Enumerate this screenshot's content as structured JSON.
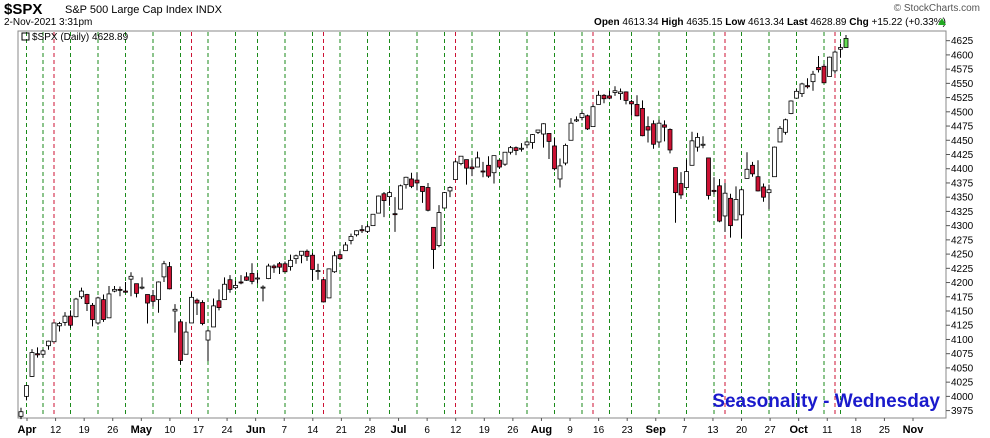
{
  "header": {
    "symbol": "$SPX",
    "name": "S&P 500 Large Cap Index",
    "exchange": "INDX",
    "date": "2-Nov-2021 3:31pm",
    "copyright": "© StockCharts.com",
    "open_label": "Open",
    "open": "4613.34",
    "high_label": "High",
    "high": "4635.15",
    "low_label": "Low",
    "low": "4613.34",
    "last_label": "Last",
    "last": "4628.89",
    "chg_label": "Chg",
    "chg": "+15.22 (+0.33%)",
    "up_color": "#22aa22"
  },
  "chart_data": {
    "type": "candlestick",
    "legend": "$SPX (Daily) 4628.89",
    "annotation": "Seasonality - Wednesday",
    "ylim": [
      3962,
      4642
    ],
    "yticks": [
      3975,
      4000,
      4025,
      4050,
      4075,
      4100,
      4125,
      4150,
      4175,
      4200,
      4225,
      4250,
      4275,
      4300,
      4325,
      4350,
      4375,
      4400,
      4425,
      4450,
      4475,
      4500,
      4525,
      4550,
      4575,
      4600,
      4625
    ],
    "x_tick_labels": [
      "Apr",
      "12",
      "19",
      "26",
      "May",
      "10",
      "17",
      "24",
      "Jun",
      "7",
      "14",
      "21",
      "28",
      "Jul",
      "6",
      "12",
      "19",
      "26",
      "Aug",
      "9",
      "16",
      "23",
      "Sep",
      "7",
      "13",
      "20",
      "27",
      "Oct",
      "11",
      "18",
      "25",
      "Nov"
    ],
    "bold_x_labels": [
      "Apr",
      "May",
      "Jun",
      "Jul",
      "Aug",
      "Sep",
      "Oct",
      "Nov"
    ],
    "colors": {
      "up": "#ffffff",
      "down": "#cc1133",
      "outline": "#000000",
      "green_line": "#1a8a1a",
      "red_line": "#cc1133",
      "last_candle": "#66dd55",
      "annotation": "#1a1acc"
    },
    "green_line_dates": [
      "Apr 1",
      "Apr 7",
      "Apr 14",
      "Apr 21",
      "Apr 28",
      "May 5",
      "May 12",
      "May 19",
      "May 26",
      "Jun 2",
      "Jun 9",
      "Jun 16",
      "Jun 23",
      "Jun 30",
      "Jul 7",
      "Jul 14",
      "Jul 21",
      "Jul 28",
      "Aug 4",
      "Aug 11",
      "Aug 18",
      "Aug 25",
      "Sep 1",
      "Sep 8",
      "Sep 15",
      "Sep 22",
      "Sep 29",
      "Oct 6",
      "Oct 13",
      "Oct 20",
      "Oct 27",
      "Nov 1"
    ],
    "red_line_dates": [
      "Apr 9",
      "May 14",
      "Jun 18",
      "Jul 23",
      "Aug 27",
      "Oct 1",
      "Oct 29"
    ],
    "candles": [
      {
        "d": "Mar 31",
        "o": 3965,
        "h": 3980,
        "l": 3960,
        "c": 3973
      },
      {
        "d": "Apr 1",
        "o": 4000,
        "h": 4020,
        "l": 3993,
        "c": 4019
      },
      {
        "d": "Apr 5",
        "o": 4035,
        "h": 4083,
        "l": 4034,
        "c": 4077
      },
      {
        "d": "Apr 6",
        "o": 4075,
        "h": 4086,
        "l": 4068,
        "c": 4073
      },
      {
        "d": "Apr 7",
        "o": 4074,
        "h": 4083,
        "l": 4068,
        "c": 4080
      },
      {
        "d": "Apr 8",
        "o": 4089,
        "h": 4098,
        "l": 4082,
        "c": 4097
      },
      {
        "d": "Apr 9",
        "o": 4096,
        "h": 4129,
        "l": 4095,
        "c": 4129
      },
      {
        "d": "Apr 12",
        "o": 4124,
        "h": 4131,
        "l": 4114,
        "c": 4128
      },
      {
        "d": "Apr 13",
        "o": 4130,
        "h": 4148,
        "l": 4124,
        "c": 4141
      },
      {
        "d": "Apr 14",
        "o": 4141,
        "h": 4151,
        "l": 4120,
        "c": 4125
      },
      {
        "d": "Apr 15",
        "o": 4140,
        "h": 4173,
        "l": 4139,
        "c": 4171
      },
      {
        "d": "Apr 16",
        "o": 4175,
        "h": 4191,
        "l": 4171,
        "c": 4185
      },
      {
        "d": "Apr 19",
        "o": 4179,
        "h": 4180,
        "l": 4150,
        "c": 4163
      },
      {
        "d": "Apr 20",
        "o": 4160,
        "h": 4164,
        "l": 4123,
        "c": 4135
      },
      {
        "d": "Apr 21",
        "o": 4129,
        "h": 4175,
        "l": 4126,
        "c": 4173
      },
      {
        "d": "Apr 22",
        "o": 4170,
        "h": 4179,
        "l": 4131,
        "c": 4135
      },
      {
        "d": "Apr 23",
        "o": 4138,
        "h": 4194,
        "l": 4138,
        "c": 4180
      },
      {
        "d": "Apr 26",
        "o": 4185,
        "h": 4194,
        "l": 4183,
        "c": 4188
      },
      {
        "d": "Apr 27",
        "o": 4188,
        "h": 4193,
        "l": 4176,
        "c": 4187
      },
      {
        "d": "Apr 28",
        "o": 4185,
        "h": 4201,
        "l": 4182,
        "c": 4183
      },
      {
        "d": "Apr 29",
        "o": 4206,
        "h": 4218,
        "l": 4176,
        "c": 4211
      },
      {
        "d": "Apr 30",
        "o": 4198,
        "h": 4198,
        "l": 4174,
        "c": 4181
      },
      {
        "d": "May 3",
        "o": 4192,
        "h": 4209,
        "l": 4188,
        "c": 4192
      },
      {
        "d": "May 4",
        "o": 4179,
        "h": 4179,
        "l": 4128,
        "c": 4164
      },
      {
        "d": "May 5",
        "o": 4177,
        "h": 4187,
        "l": 4158,
        "c": 4167
      },
      {
        "d": "May 6",
        "o": 4170,
        "h": 4202,
        "l": 4147,
        "c": 4201
      },
      {
        "d": "May 7",
        "o": 4210,
        "h": 4238,
        "l": 4201,
        "c": 4233
      },
      {
        "d": "May 10",
        "o": 4228,
        "h": 4236,
        "l": 4188,
        "c": 4189
      },
      {
        "d": "May 11",
        "o": 4150,
        "h": 4162,
        "l": 4112,
        "c": 4153
      },
      {
        "d": "May 12",
        "o": 4131,
        "h": 4135,
        "l": 4056,
        "c": 4063
      },
      {
        "d": "May 13",
        "o": 4074,
        "h": 4131,
        "l": 4074,
        "c": 4113
      },
      {
        "d": "May 14",
        "o": 4129,
        "h": 4183,
        "l": 4129,
        "c": 4174
      },
      {
        "d": "May 17",
        "o": 4169,
        "h": 4172,
        "l": 4143,
        "c": 4164
      },
      {
        "d": "May 18",
        "o": 4165,
        "h": 4169,
        "l": 4125,
        "c": 4128
      },
      {
        "d": "May 19",
        "o": 4099,
        "h": 4117,
        "l": 4062,
        "c": 4115
      },
      {
        "d": "May 20",
        "o": 4122,
        "h": 4172,
        "l": 4122,
        "c": 4159
      },
      {
        "d": "May 21",
        "o": 4168,
        "h": 4188,
        "l": 4151,
        "c": 4156
      },
      {
        "d": "May 24",
        "o": 4170,
        "h": 4209,
        "l": 4170,
        "c": 4197
      },
      {
        "d": "May 25",
        "o": 4205,
        "h": 4213,
        "l": 4182,
        "c": 4188
      },
      {
        "d": "May 26",
        "o": 4191,
        "h": 4203,
        "l": 4188,
        "c": 4195
      },
      {
        "d": "May 27",
        "o": 4201,
        "h": 4213,
        "l": 4197,
        "c": 4200
      },
      {
        "d": "May 28",
        "o": 4210,
        "h": 4218,
        "l": 4203,
        "c": 4204
      },
      {
        "d": "Jun 1",
        "o": 4216,
        "h": 4234,
        "l": 4197,
        "c": 4202
      },
      {
        "d": "Jun 2",
        "o": 4207,
        "h": 4217,
        "l": 4198,
        "c": 4208
      },
      {
        "d": "Jun 3",
        "o": 4191,
        "h": 4195,
        "l": 4167,
        "c": 4192
      },
      {
        "d": "Jun 4",
        "o": 4207,
        "h": 4233,
        "l": 4206,
        "c": 4229
      },
      {
        "d": "Jun 7",
        "o": 4229,
        "h": 4232,
        "l": 4217,
        "c": 4226
      },
      {
        "d": "Jun 8",
        "o": 4233,
        "h": 4236,
        "l": 4215,
        "c": 4227
      },
      {
        "d": "Jun 9",
        "o": 4233,
        "h": 4237,
        "l": 4218,
        "c": 4219
      },
      {
        "d": "Jun 10",
        "o": 4228,
        "h": 4249,
        "l": 4221,
        "c": 4239
      },
      {
        "d": "Jun 11",
        "o": 4242,
        "h": 4249,
        "l": 4233,
        "c": 4247
      },
      {
        "d": "Jun 14",
        "o": 4248,
        "h": 4255,
        "l": 4234,
        "c": 4255
      },
      {
        "d": "Jun 15",
        "o": 4255,
        "h": 4258,
        "l": 4238,
        "c": 4246
      },
      {
        "d": "Jun 16",
        "o": 4248,
        "h": 4252,
        "l": 4203,
        "c": 4223
      },
      {
        "d": "Jun 17",
        "o": 4220,
        "h": 4233,
        "l": 4205,
        "c": 4221
      },
      {
        "d": "Jun 18",
        "o": 4205,
        "h": 4206,
        "l": 4165,
        "c": 4166
      },
      {
        "d": "Jun 21",
        "o": 4173,
        "h": 4225,
        "l": 4173,
        "c": 4224
      },
      {
        "d": "Jun 22",
        "o": 4219,
        "h": 4255,
        "l": 4217,
        "c": 4247
      },
      {
        "d": "Jun 23",
        "o": 4249,
        "h": 4256,
        "l": 4241,
        "c": 4242
      },
      {
        "d": "Jun 24",
        "o": 4256,
        "h": 4271,
        "l": 4256,
        "c": 4266
      },
      {
        "d": "Jun 25",
        "o": 4274,
        "h": 4286,
        "l": 4267,
        "c": 4281
      },
      {
        "d": "Jun 28",
        "o": 4284,
        "h": 4292,
        "l": 4281,
        "c": 4291
      },
      {
        "d": "Jun 29",
        "o": 4293,
        "h": 4301,
        "l": 4287,
        "c": 4291
      },
      {
        "d": "Jun 30",
        "o": 4290,
        "h": 4302,
        "l": 4287,
        "c": 4298
      },
      {
        "d": "Jul 1",
        "o": 4300,
        "h": 4320,
        "l": 4300,
        "c": 4320
      },
      {
        "d": "Jul 2",
        "o": 4322,
        "h": 4353,
        "l": 4322,
        "c": 4352
      },
      {
        "d": "Jul 6",
        "o": 4356,
        "h": 4359,
        "l": 4315,
        "c": 4344
      },
      {
        "d": "Jul 7",
        "o": 4351,
        "h": 4362,
        "l": 4335,
        "c": 4358
      },
      {
        "d": "Jul 8",
        "o": 4321,
        "h": 4350,
        "l": 4289,
        "c": 4320
      },
      {
        "d": "Jul 9",
        "o": 4329,
        "h": 4372,
        "l": 4329,
        "c": 4370
      },
      {
        "d": "Jul 12",
        "o": 4372,
        "h": 4386,
        "l": 4365,
        "c": 4385
      },
      {
        "d": "Jul 13",
        "o": 4382,
        "h": 4393,
        "l": 4366,
        "c": 4369
      },
      {
        "d": "Jul 14",
        "o": 4380,
        "h": 4393,
        "l": 4362,
        "c": 4375
      },
      {
        "d": "Jul 15",
        "o": 4369,
        "h": 4369,
        "l": 4340,
        "c": 4360
      },
      {
        "d": "Jul 16",
        "o": 4367,
        "h": 4375,
        "l": 4325,
        "c": 4327
      },
      {
        "d": "Jul 19",
        "o": 4297,
        "h": 4297,
        "l": 4224,
        "c": 4258
      },
      {
        "d": "Jul 20",
        "o": 4265,
        "h": 4336,
        "l": 4262,
        "c": 4323
      },
      {
        "d": "Jul 21",
        "o": 4331,
        "h": 4359,
        "l": 4331,
        "c": 4358
      },
      {
        "d": "Jul 22",
        "o": 4361,
        "h": 4369,
        "l": 4350,
        "c": 4367
      },
      {
        "d": "Jul 23",
        "o": 4381,
        "h": 4415,
        "l": 4381,
        "c": 4412
      },
      {
        "d": "Jul 26",
        "o": 4409,
        "h": 4422,
        "l": 4406,
        "c": 4422
      },
      {
        "d": "Jul 27",
        "o": 4416,
        "h": 4416,
        "l": 4372,
        "c": 4401
      },
      {
        "d": "Jul 28",
        "o": 4403,
        "h": 4416,
        "l": 4387,
        "c": 4400
      },
      {
        "d": "Jul 29",
        "o": 4403,
        "h": 4430,
        "l": 4403,
        "c": 4419
      },
      {
        "d": "Jul 30",
        "o": 4396,
        "h": 4412,
        "l": 4385,
        "c": 4395
      },
      {
        "d": "Aug 2",
        "o": 4406,
        "h": 4422,
        "l": 4384,
        "c": 4387
      },
      {
        "d": "Aug 3",
        "o": 4393,
        "h": 4423,
        "l": 4374,
        "c": 4423
      },
      {
        "d": "Aug 4",
        "o": 4415,
        "h": 4416,
        "l": 4400,
        "c": 4403
      },
      {
        "d": "Aug 5",
        "o": 4408,
        "h": 4429,
        "l": 4405,
        "c": 4429
      },
      {
        "d": "Aug 6",
        "o": 4429,
        "h": 4440,
        "l": 4425,
        "c": 4437
      },
      {
        "d": "Aug 9",
        "o": 4437,
        "h": 4439,
        "l": 4424,
        "c": 4432
      },
      {
        "d": "Aug 10",
        "o": 4435,
        "h": 4445,
        "l": 4430,
        "c": 4436
      },
      {
        "d": "Aug 11",
        "o": 4442,
        "h": 4449,
        "l": 4436,
        "c": 4447
      },
      {
        "d": "Aug 12",
        "o": 4446,
        "h": 4461,
        "l": 4435,
        "c": 4460
      },
      {
        "d": "Aug 13",
        "o": 4464,
        "h": 4468,
        "l": 4461,
        "c": 4468
      },
      {
        "d": "Aug 16",
        "o": 4461,
        "h": 4480,
        "l": 4437,
        "c": 4479
      },
      {
        "d": "Aug 17",
        "o": 4462,
        "h": 4462,
        "l": 4417,
        "c": 4448
      },
      {
        "d": "Aug 18",
        "o": 4440,
        "h": 4454,
        "l": 4397,
        "c": 4400
      },
      {
        "d": "Aug 19",
        "o": 4382,
        "h": 4418,
        "l": 4367,
        "c": 4405
      },
      {
        "d": "Aug 20",
        "o": 4410,
        "h": 4444,
        "l": 4406,
        "c": 4441
      },
      {
        "d": "Aug 23",
        "o": 4450,
        "h": 4489,
        "l": 4450,
        "c": 4480
      },
      {
        "d": "Aug 24",
        "o": 4484,
        "h": 4492,
        "l": 4482,
        "c": 4486
      },
      {
        "d": "Aug 25",
        "o": 4490,
        "h": 4501,
        "l": 4485,
        "c": 4497
      },
      {
        "d": "Aug 26",
        "o": 4493,
        "h": 4495,
        "l": 4468,
        "c": 4470
      },
      {
        "d": "Aug 27",
        "o": 4474,
        "h": 4513,
        "l": 4474,
        "c": 4509
      },
      {
        "d": "Aug 30",
        "o": 4513,
        "h": 4537,
        "l": 4513,
        "c": 4529
      },
      {
        "d": "Aug 31",
        "o": 4529,
        "h": 4531,
        "l": 4515,
        "c": 4523
      },
      {
        "d": "Sep 1",
        "o": 4528,
        "h": 4537,
        "l": 4522,
        "c": 4524
      },
      {
        "d": "Sep 2",
        "o": 4534,
        "h": 4545,
        "l": 4528,
        "c": 4537
      },
      {
        "d": "Sep 3",
        "o": 4532,
        "h": 4541,
        "l": 4521,
        "c": 4535
      },
      {
        "d": "Sep 7",
        "o": 4535,
        "h": 4536,
        "l": 4513,
        "c": 4520
      },
      {
        "d": "Sep 8",
        "o": 4518,
        "h": 4521,
        "l": 4493,
        "c": 4514
      },
      {
        "d": "Sep 9",
        "o": 4513,
        "h": 4529,
        "l": 4492,
        "c": 4493
      },
      {
        "d": "Sep 10",
        "o": 4506,
        "h": 4520,
        "l": 4457,
        "c": 4458
      },
      {
        "d": "Sep 13",
        "o": 4474,
        "h": 4492,
        "l": 4446,
        "c": 4468
      },
      {
        "d": "Sep 14",
        "o": 4479,
        "h": 4485,
        "l": 4435,
        "c": 4443
      },
      {
        "d": "Sep 15",
        "o": 4447,
        "h": 4486,
        "l": 4438,
        "c": 4480
      },
      {
        "d": "Sep 16",
        "o": 4477,
        "h": 4485,
        "l": 4448,
        "c": 4473
      },
      {
        "d": "Sep 17",
        "o": 4469,
        "h": 4471,
        "l": 4427,
        "c": 4433
      },
      {
        "d": "Sep 20",
        "o": 4402,
        "h": 4402,
        "l": 4305,
        "c": 4358
      },
      {
        "d": "Sep 21",
        "o": 4374,
        "h": 4394,
        "l": 4347,
        "c": 4354
      },
      {
        "d": "Sep 22",
        "o": 4367,
        "h": 4416,
        "l": 4367,
        "c": 4395
      },
      {
        "d": "Sep 23",
        "o": 4406,
        "h": 4465,
        "l": 4406,
        "c": 4449
      },
      {
        "d": "Sep 24",
        "o": 4438,
        "h": 4463,
        "l": 4430,
        "c": 4455
      },
      {
        "d": "Sep 27",
        "o": 4442,
        "h": 4457,
        "l": 4436,
        "c": 4443
      },
      {
        "d": "Sep 28",
        "o": 4419,
        "h": 4419,
        "l": 4346,
        "c": 4353
      },
      {
        "d": "Sep 29",
        "o": 4362,
        "h": 4385,
        "l": 4355,
        "c": 4360
      },
      {
        "d": "Sep 30",
        "o": 4370,
        "h": 4382,
        "l": 4306,
        "c": 4308
      },
      {
        "d": "Oct 1",
        "o": 4317,
        "h": 4375,
        "l": 4289,
        "c": 4357
      },
      {
        "d": "Oct 4",
        "o": 4348,
        "h": 4356,
        "l": 4279,
        "c": 4300
      },
      {
        "d": "Oct 5",
        "o": 4310,
        "h": 4369,
        "l": 4310,
        "c": 4346
      },
      {
        "d": "Oct 6",
        "o": 4319,
        "h": 4365,
        "l": 4278,
        "c": 4363
      },
      {
        "d": "Oct 7",
        "o": 4383,
        "h": 4429,
        "l": 4383,
        "c": 4399
      },
      {
        "d": "Oct 8",
        "o": 4406,
        "h": 4412,
        "l": 4386,
        "c": 4391
      },
      {
        "d": "Oct 11",
        "o": 4386,
        "h": 4415,
        "l": 4360,
        "c": 4361
      },
      {
        "d": "Oct 12",
        "o": 4368,
        "h": 4374,
        "l": 4342,
        "c": 4350
      },
      {
        "d": "Oct 13",
        "o": 4358,
        "h": 4372,
        "l": 4329,
        "c": 4363
      },
      {
        "d": "Oct 14",
        "o": 4386,
        "h": 4439,
        "l": 4386,
        "c": 4438
      },
      {
        "d": "Oct 15",
        "o": 4447,
        "h": 4475,
        "l": 4447,
        "c": 4471
      },
      {
        "d": "Oct 18",
        "o": 4464,
        "h": 4488,
        "l": 4460,
        "c": 4486
      },
      {
        "d": "Oct 19",
        "o": 4497,
        "h": 4520,
        "l": 4496,
        "c": 4519
      },
      {
        "d": "Oct 20",
        "o": 4524,
        "h": 4540,
        "l": 4524,
        "c": 4536
      },
      {
        "d": "Oct 21",
        "o": 4532,
        "h": 4551,
        "l": 4526,
        "c": 4549
      },
      {
        "d": "Oct 22",
        "o": 4546,
        "h": 4559,
        "l": 4541,
        "c": 4544
      },
      {
        "d": "Oct 25",
        "o": 4553,
        "h": 4572,
        "l": 4537,
        "c": 4566
      },
      {
        "d": "Oct 26",
        "o": 4578,
        "h": 4598,
        "l": 4569,
        "c": 4574
      },
      {
        "d": "Oct 27",
        "o": 4580,
        "h": 4584,
        "l": 4551,
        "c": 4551
      },
      {
        "d": "Oct 28",
        "o": 4562,
        "h": 4597,
        "l": 4562,
        "c": 4596
      },
      {
        "d": "Oct 29",
        "o": 4572,
        "h": 4608,
        "l": 4567,
        "c": 4605
      },
      {
        "d": "Nov 1",
        "o": 4610,
        "h": 4620,
        "l": 4595,
        "c": 4613
      },
      {
        "d": "Nov 2",
        "o": 4613,
        "h": 4635,
        "l": 4613,
        "c": 4629
      }
    ]
  }
}
